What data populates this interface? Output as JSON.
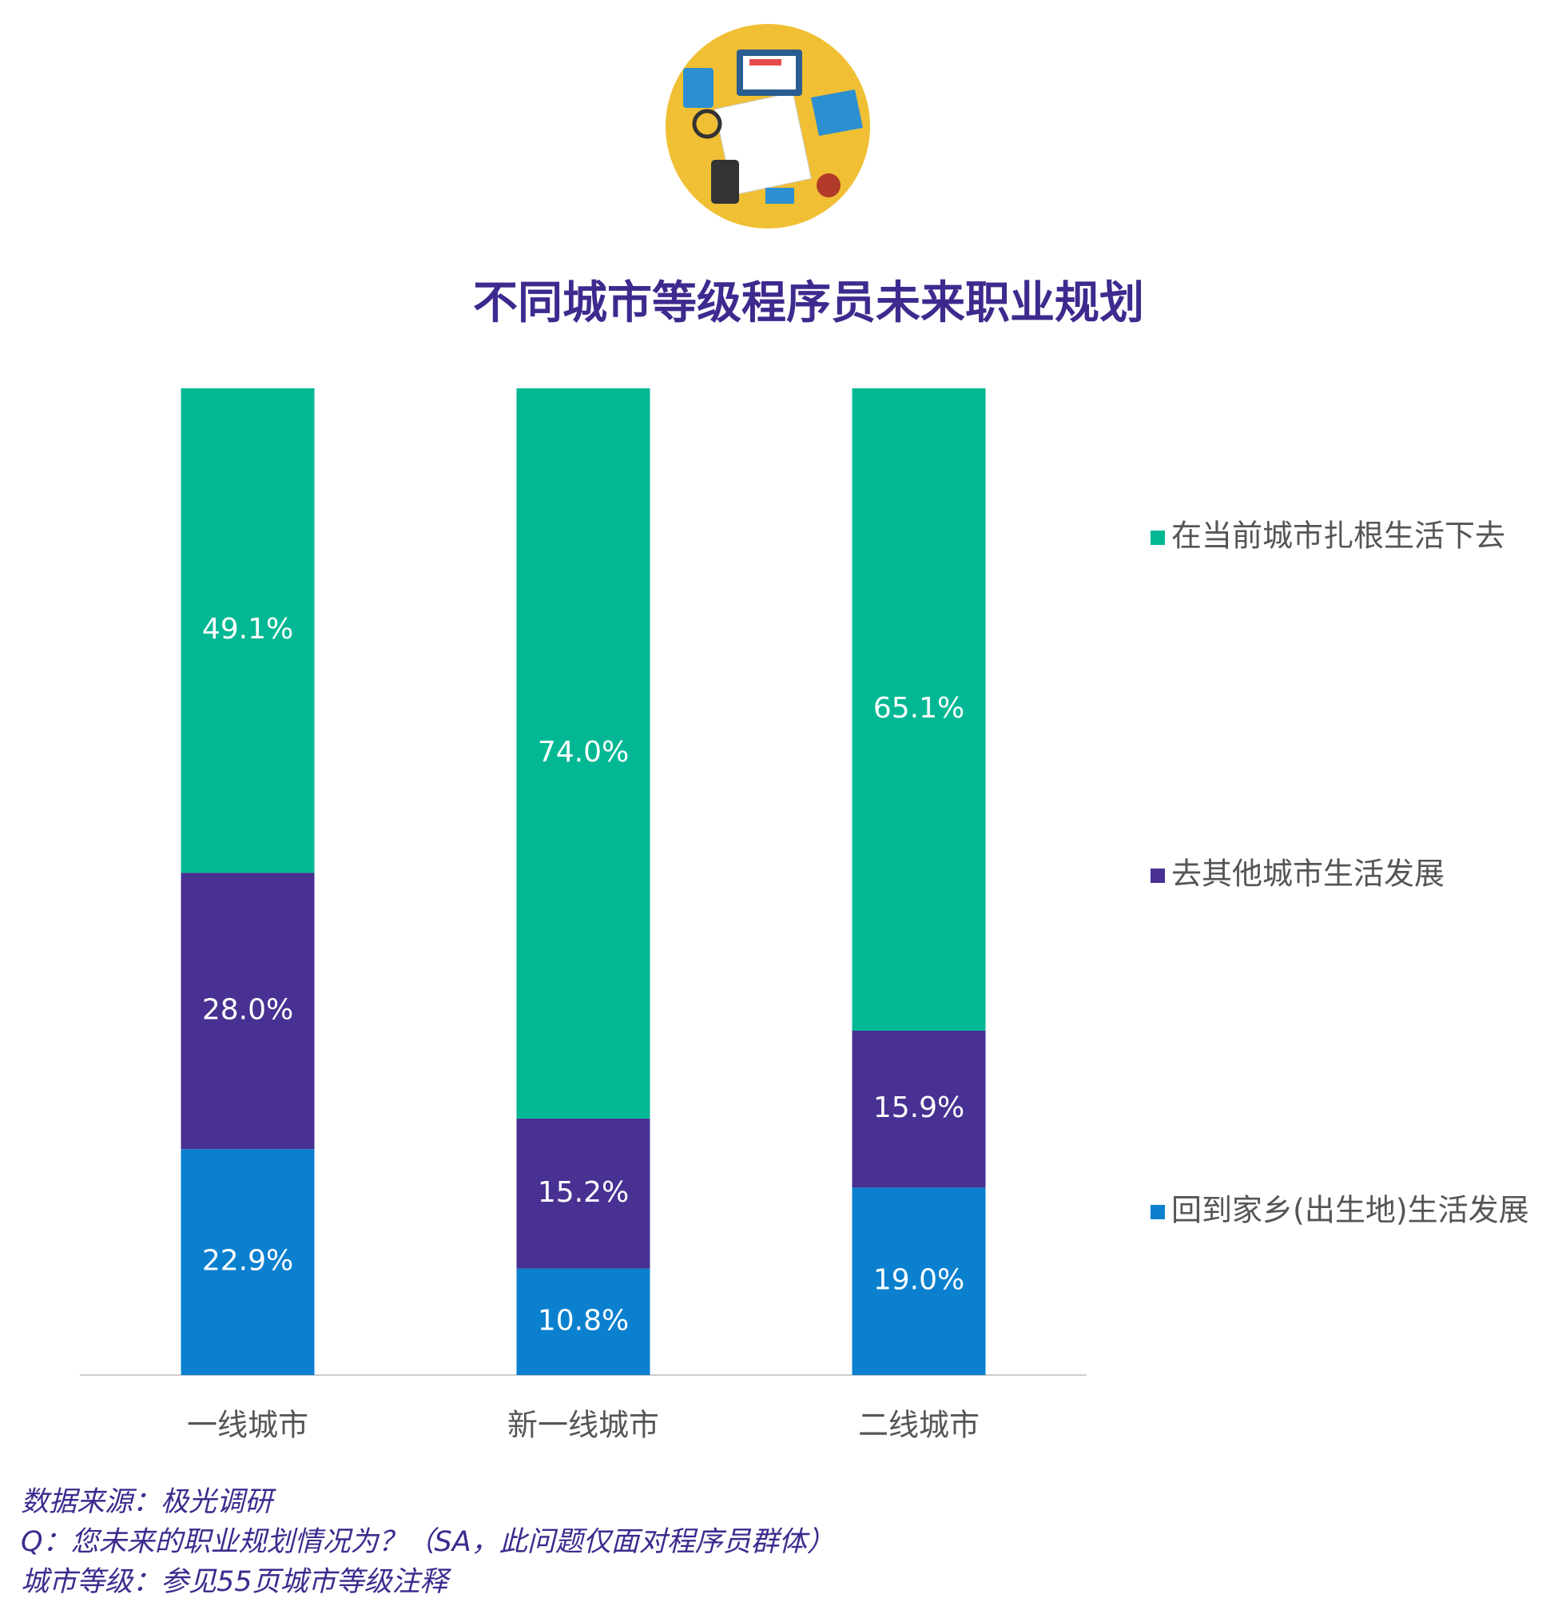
{
  "chart_data": {
    "type": "stacked_bar",
    "title": "不同城市等级程序员未来职业规划",
    "categories": [
      "一线城市",
      "新一线城市",
      "二线城市"
    ],
    "series": [
      {
        "name": "回到家乡(出生地)生活发展",
        "color": "#0a80cf",
        "values": [
          22.9,
          10.8,
          19.0
        ],
        "value_labels": [
          "22.9%",
          "10.8%",
          "19.0%"
        ]
      },
      {
        "name": "去其他城市生活发展",
        "color": "#483192",
        "values": [
          28.0,
          15.2,
          15.9
        ],
        "value_labels": [
          "28.0%",
          "15.2%",
          "15.9%"
        ]
      },
      {
        "name": "在当前城市扎根生活下去",
        "color": "#02b894",
        "values": [
          49.1,
          74.0,
          65.1
        ],
        "value_labels": [
          "49.1%",
          "74.0%",
          "65.1%"
        ]
      }
    ],
    "ylim": [
      0,
      100
    ],
    "notes": [
      "数据来源：极光调研",
      "Q：您未来的职业规划情况为？（SA，此问题仅面对程序员群体）",
      "城市等级：参见55页城市等级注释"
    ]
  }
}
